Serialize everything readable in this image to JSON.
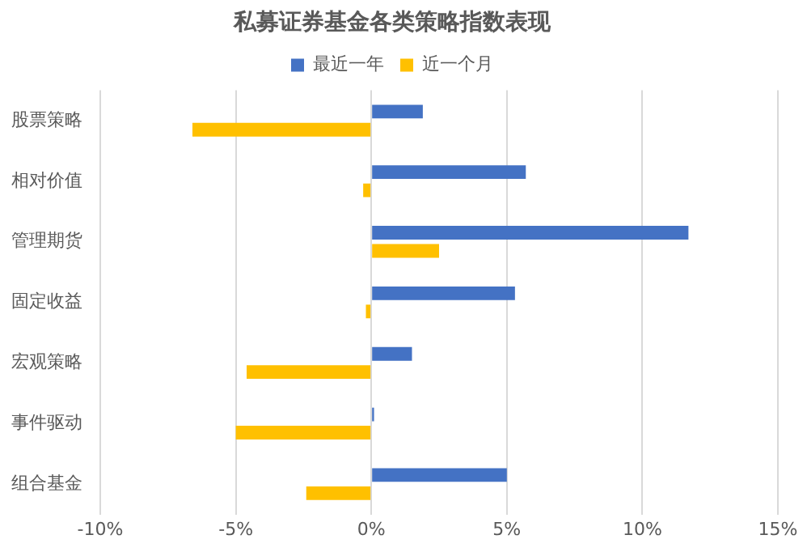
{
  "chart_data": {
    "type": "bar",
    "orientation": "horizontal",
    "title": "私募证券基金各类策略指数表现",
    "categories": [
      "股票策略",
      "相对价值",
      "管理期货",
      "固定收益",
      "宏观策略",
      "事件驱动",
      "组合基金"
    ],
    "series": [
      {
        "name": "最近一年",
        "color": "#4472c4",
        "values": [
          1.9,
          5.7,
          11.7,
          5.3,
          1.5,
          0.1,
          5.0
        ]
      },
      {
        "name": "近一个月",
        "color": "#ffc000",
        "values": [
          -6.6,
          -0.3,
          2.5,
          -0.2,
          -4.6,
          -5.0,
          -2.4
        ]
      }
    ],
    "xlim": [
      -10,
      15
    ],
    "xticks": [
      {
        "value": -10,
        "label": "-10%"
      },
      {
        "value": -5,
        "label": "-5%"
      },
      {
        "value": 0,
        "label": "0%"
      },
      {
        "value": 5,
        "label": "5%"
      },
      {
        "value": 10,
        "label": "10%"
      },
      {
        "value": 15,
        "label": "15%"
      }
    ],
    "grid": "x",
    "legend": "top"
  }
}
